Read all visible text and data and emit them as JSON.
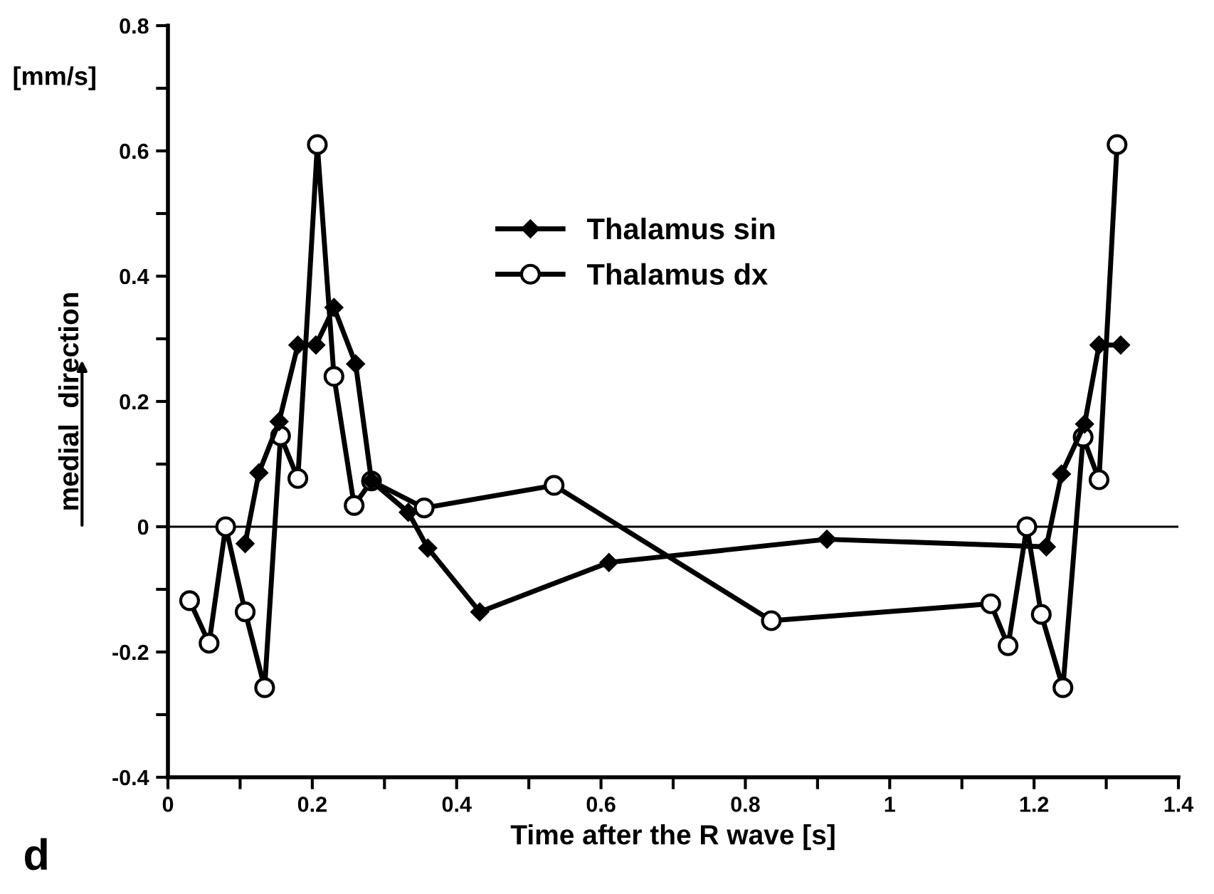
{
  "chart_data": {
    "type": "line",
    "xlabel": "Time after the R wave [s]",
    "ylabel": "medial  direction",
    "annotations": [
      "[mm/s]",
      "d"
    ],
    "xlim": [
      0,
      1.4
    ],
    "ylim": [
      -0.4,
      0.8
    ],
    "xticks": [
      0,
      {
        "value": 0.1,
        "label": null
      },
      {
        "value": 0.2,
        "label": "0.2"
      },
      {
        "value": 0.3,
        "label": null
      },
      {
        "value": 0.4,
        "label": "0.4"
      },
      {
        "value": 0.5,
        "label": null
      },
      {
        "value": 0.6,
        "label": "0.6"
      },
      {
        "value": 0.7,
        "label": null
      },
      {
        "value": 0.8,
        "label": "0.8"
      },
      {
        "value": 0.9,
        "label": null
      },
      1,
      {
        "value": 1.1,
        "label": null
      },
      {
        "value": 1.2,
        "label": "1.2"
      },
      {
        "value": 1.3,
        "label": null
      },
      {
        "value": 1.4,
        "label": "1.4"
      }
    ],
    "yticks": [
      {
        "value": -0.4,
        "label": "-0.4"
      },
      {
        "value": -0.3,
        "label": null
      },
      {
        "value": -0.2,
        "label": "-0.2"
      },
      {
        "value": -0.1,
        "label": null
      },
      0,
      {
        "value": 0.1,
        "label": null
      },
      {
        "value": 0.2,
        "label": "0.2"
      },
      {
        "value": 0.3,
        "label": null
      },
      {
        "value": 0.4,
        "label": "0.4"
      },
      {
        "value": 0.5,
        "label": null
      },
      {
        "value": 0.6,
        "label": "0.6"
      },
      {
        "value": 0.7,
        "label": null
      },
      {
        "value": 0.8,
        "label": "0.8"
      }
    ],
    "ref_lines": [
      {
        "axis": "y",
        "value": 0,
        "color": "#000000"
      }
    ],
    "grid": false,
    "legend": "top",
    "line_style": "solid",
    "series": [
      {
        "name": "Thalamus sin",
        "color": "#000000",
        "marker": "diamond",
        "x": [
          0.107,
          0.126,
          0.154,
          0.18,
          0.205,
          0.23,
          0.26,
          0.282,
          0.333,
          0.36,
          0.432,
          0.611,
          0.913,
          1.217,
          1.238,
          1.27,
          1.29,
          1.32
        ],
        "values": [
          -0.027,
          0.086,
          0.168,
          0.29,
          0.29,
          0.35,
          0.26,
          0.073,
          0.023,
          -0.034,
          -0.136,
          -0.057,
          -0.02,
          -0.032,
          0.084,
          0.164,
          0.29,
          0.29
        ]
      },
      {
        "name": "Thalamus dx",
        "color": "#000000",
        "marker": "circle",
        "x": [
          0.03,
          0.057,
          0.08,
          0.107,
          0.134,
          0.156,
          0.18,
          0.207,
          0.23,
          0.258,
          0.282,
          0.355,
          0.535,
          0.836,
          1.14,
          1.164,
          1.19,
          1.21,
          1.24,
          1.268,
          1.29,
          1.315
        ],
        "values": [
          -0.118,
          -0.186,
          0.0,
          -0.136,
          -0.257,
          0.145,
          0.077,
          0.61,
          0.24,
          0.034,
          0.073,
          0.03,
          0.066,
          -0.15,
          -0.123,
          -0.19,
          0.0,
          -0.14,
          -0.257,
          0.143,
          0.075,
          0.61
        ]
      }
    ]
  }
}
